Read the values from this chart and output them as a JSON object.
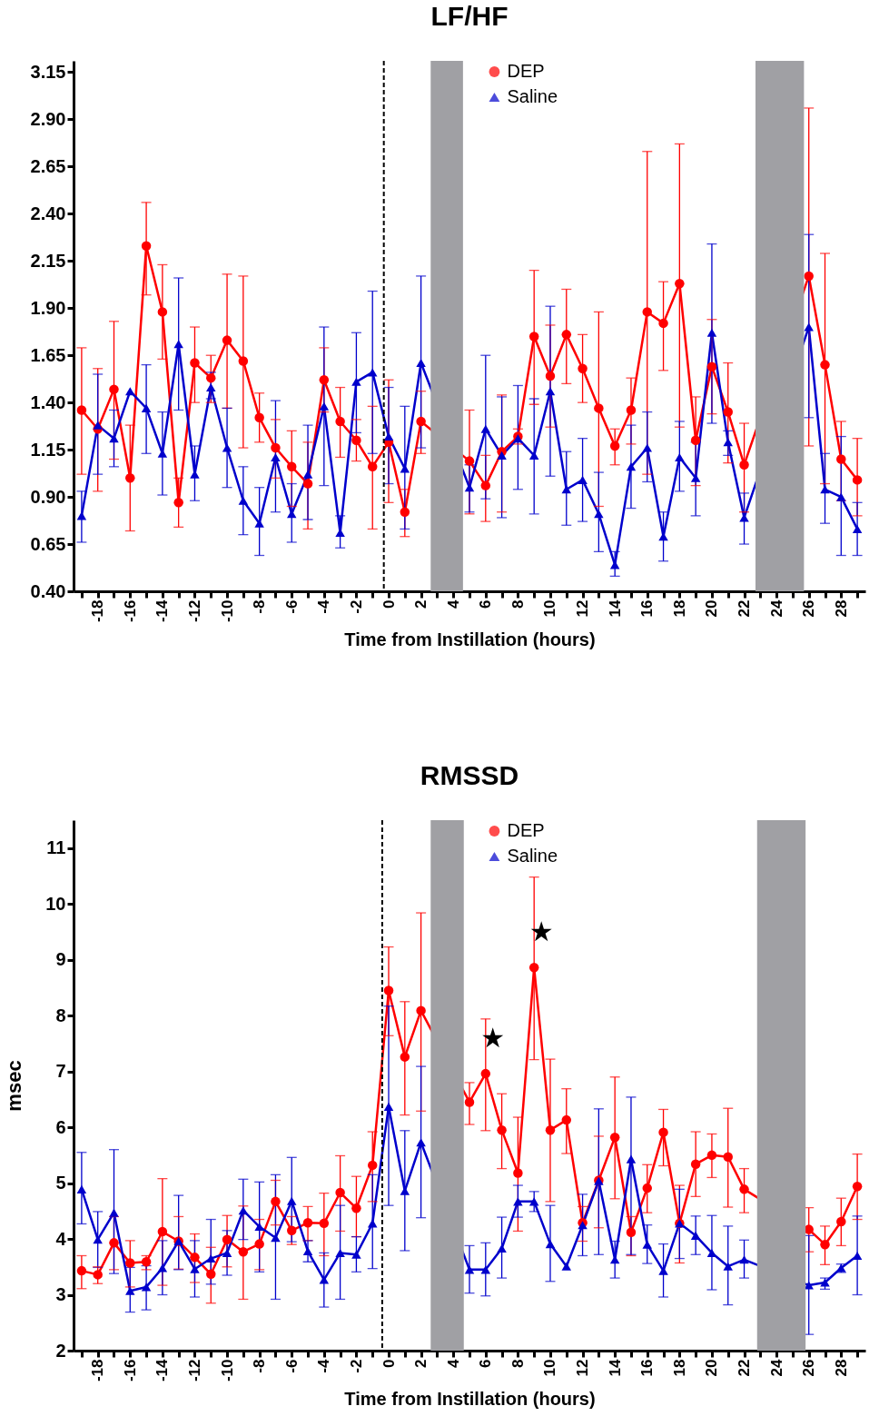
{
  "chart_data": [
    {
      "type": "line",
      "title": "LF/HF",
      "xlabel": "Time from Instillation (hours)",
      "legend": "top",
      "x": [
        -19,
        -18,
        -17,
        -16,
        -15,
        -14,
        -13,
        -12,
        -11,
        -10,
        -9,
        -8,
        -7,
        -6,
        -5,
        -4,
        -3,
        -2,
        -1,
        0,
        1,
        2,
        3,
        4,
        5,
        6,
        7,
        8,
        9,
        10,
        11,
        12,
        13,
        14,
        15,
        16,
        17,
        18,
        19,
        20,
        21,
        22,
        23,
        24,
        25,
        26,
        27,
        28,
        29
      ],
      "xlim": [
        -19.5,
        29.5
      ],
      "xticks": [
        {
          "value": -19,
          "label": null
        },
        -18,
        {
          "value": -17,
          "label": null
        },
        -16,
        {
          "value": -15,
          "label": null
        },
        -14,
        {
          "value": -13,
          "label": null
        },
        -12,
        {
          "value": -11,
          "label": null
        },
        -10,
        {
          "value": -9,
          "label": null
        },
        -8,
        {
          "value": -7,
          "label": null
        },
        -6,
        {
          "value": -5,
          "label": null
        },
        -4,
        {
          "value": -3,
          "label": null
        },
        -2,
        {
          "value": -1,
          "label": null
        },
        0,
        {
          "value": 1,
          "label": null
        },
        2,
        {
          "value": 3,
          "label": null
        },
        4,
        {
          "value": 5,
          "label": null
        },
        6,
        {
          "value": 7,
          "label": null
        },
        8,
        {
          "value": 9,
          "label": null
        },
        10,
        {
          "value": 11,
          "label": null
        },
        12,
        {
          "value": 13,
          "label": null
        },
        14,
        {
          "value": 15,
          "label": null
        },
        16,
        {
          "value": 17,
          "label": null
        },
        18,
        {
          "value": 19,
          "label": null
        },
        20,
        {
          "value": 21,
          "label": null
        },
        22,
        {
          "value": 23,
          "label": null
        },
        24,
        {
          "value": 25,
          "label": null
        },
        26,
        {
          "value": 27,
          "label": null
        },
        28,
        {
          "value": 29,
          "label": null
        }
      ],
      "ylim": [
        0.4,
        3.21
      ],
      "yticks": [
        {
          "value": 0.4,
          "label": "0.40"
        },
        0.65,
        {
          "value": 0.9,
          "label": "0.90"
        },
        1.15,
        {
          "value": 1.4,
          "label": "1.40"
        },
        1.65,
        {
          "value": 1.9,
          "label": "1.90"
        },
        2.15,
        {
          "value": 2.4,
          "label": "2.40"
        },
        2.65,
        {
          "value": 2.9,
          "label": "2.90"
        },
        3.15
      ],
      "ref_lines": [
        {
          "axis": "x",
          "value": -0.3,
          "color": "#000000",
          "line_style": "dashed"
        }
      ],
      "bands": [
        {
          "axis": "x",
          "from": 2.6,
          "to": 4.6,
          "color": "#a0a0a4"
        },
        {
          "axis": "x",
          "from": 22.7,
          "to": 25.7,
          "color": "#a0a0a4"
        }
      ],
      "series": [
        {
          "name": "DEP",
          "color": "#ff0000",
          "marker": "circle",
          "values": [
            1.36,
            1.26,
            1.47,
            1.0,
            2.23,
            1.88,
            0.87,
            1.61,
            1.53,
            1.73,
            1.62,
            1.32,
            1.16,
            1.06,
            0.97,
            1.52,
            1.3,
            1.2,
            1.06,
            1.19,
            0.82,
            1.3,
            null,
            null,
            1.09,
            0.96,
            1.14,
            1.22,
            1.75,
            1.54,
            1.76,
            1.58,
            1.37,
            1.17,
            1.36,
            1.88,
            1.82,
            2.03,
            1.2,
            1.59,
            1.35,
            1.07,
            null,
            null,
            null,
            2.07,
            1.6,
            1.1,
            0.99
          ],
          "errors": [
            [
              1.02,
              1.69
            ],
            [
              0.93,
              1.58
            ],
            [
              1.1,
              1.83
            ],
            [
              0.72,
              1.28
            ],
            [
              1.97,
              2.46
            ],
            [
              1.63,
              2.13
            ],
            [
              0.74,
              1.0
            ],
            [
              1.4,
              1.8
            ],
            [
              1.4,
              1.65
            ],
            [
              1.37,
              2.08
            ],
            [
              1.16,
              2.07
            ],
            [
              1.19,
              1.45
            ],
            [
              1.0,
              1.31
            ],
            [
              0.85,
              1.25
            ],
            [
              0.73,
              1.19
            ],
            [
              1.35,
              1.69
            ],
            [
              1.11,
              1.48
            ],
            [
              1.09,
              1.31
            ],
            [
              0.73,
              1.38
            ],
            [
              0.87,
              1.52
            ],
            [
              0.69,
              0.94
            ],
            [
              1.13,
              1.46
            ],
            null,
            null,
            [
              0.81,
              1.36
            ],
            [
              0.77,
              1.12
            ],
            [
              0.82,
              1.44
            ],
            [
              1.18,
              1.26
            ],
            [
              1.39,
              2.1
            ],
            [
              1.27,
              1.81
            ],
            [
              1.5,
              2.0
            ],
            [
              1.4,
              1.76
            ],
            [
              0.85,
              1.88
            ],
            [
              1.07,
              1.26
            ],
            [
              1.18,
              1.53
            ],
            [
              1.02,
              2.73
            ],
            [
              1.57,
              2.04
            ],
            [
              1.27,
              2.77
            ],
            [
              0.96,
              1.43
            ],
            [
              1.34,
              1.84
            ],
            [
              1.08,
              1.61
            ],
            [
              0.82,
              1.29
            ],
            null,
            null,
            null,
            [
              1.17,
              2.96
            ],
            [
              0.97,
              2.19
            ],
            [
              0.88,
              1.3
            ],
            [
              0.8,
              1.21
            ]
          ]
        },
        {
          "name": "Saline",
          "color": "#0000cc",
          "marker": "triangle",
          "values": [
            0.8,
            1.28,
            1.21,
            1.46,
            1.37,
            1.13,
            1.71,
            1.02,
            1.48,
            1.16,
            0.88,
            0.76,
            1.11,
            0.81,
            1.02,
            1.38,
            0.71,
            1.51,
            1.56,
            1.22,
            1.05,
            1.61,
            null,
            null,
            0.95,
            1.26,
            1.12,
            1.21,
            1.12,
            1.46,
            0.94,
            0.99,
            0.81,
            0.54,
            1.06,
            1.16,
            0.69,
            1.11,
            1.0,
            1.77,
            1.19,
            0.79,
            null,
            null,
            null,
            1.8,
            0.94,
            0.9,
            0.73
          ],
          "errors": [
            [
              0.66,
              0.93
            ],
            [
              1.02,
              1.55
            ],
            [
              1.06,
              1.36
            ],
            null,
            [
              1.13,
              1.6
            ],
            [
              0.91,
              1.35
            ],
            [
              1.36,
              2.06
            ],
            [
              0.88,
              1.17
            ],
            [
              1.42,
              1.56
            ],
            [
              0.95,
              1.37
            ],
            [
              0.7,
              1.06
            ],
            [
              0.59,
              0.95
            ],
            [
              0.82,
              1.41
            ],
            [
              0.66,
              0.97
            ],
            [
              0.78,
              1.28
            ],
            [
              0.96,
              1.8
            ],
            [
              0.63,
              0.8
            ],
            [
              1.24,
              1.77
            ],
            [
              1.13,
              1.99
            ],
            [
              0.97,
              1.48
            ],
            [
              0.73,
              1.38
            ],
            [
              1.16,
              2.07
            ],
            null,
            null,
            [
              0.82,
              1.07
            ],
            [
              0.89,
              1.65
            ],
            [
              0.79,
              1.43
            ],
            [
              0.94,
              1.49
            ],
            [
              0.81,
              1.42
            ],
            [
              1.01,
              1.91
            ],
            [
              0.75,
              1.14
            ],
            [
              0.77,
              1.21
            ],
            [
              0.61,
              1.03
            ],
            [
              0.48,
              0.61
            ],
            [
              0.84,
              1.28
            ],
            [
              0.98,
              1.35
            ],
            [
              0.56,
              0.82
            ],
            [
              0.93,
              1.3
            ],
            [
              0.8,
              1.19
            ],
            [
              1.29,
              2.24
            ],
            [
              1.12,
              1.25
            ],
            [
              0.65,
              0.92
            ],
            null,
            null,
            null,
            [
              1.32,
              2.29
            ],
            [
              0.76,
              1.13
            ],
            [
              0.59,
              1.22
            ],
            [
              0.59,
              0.87
            ]
          ]
        }
      ]
    },
    {
      "type": "line",
      "title": "RMSSD",
      "xlabel": "Time from Instillation (hours)",
      "ylabel": "msec",
      "legend": "top",
      "x": [
        -19,
        -18,
        -17,
        -16,
        -15,
        -14,
        -13,
        -12,
        -11,
        -10,
        -9,
        -8,
        -7,
        -6,
        -5,
        -4,
        -3,
        -2,
        -1,
        0,
        1,
        2,
        3,
        4,
        5,
        6,
        7,
        8,
        9,
        10,
        11,
        12,
        13,
        14,
        15,
        16,
        17,
        18,
        19,
        20,
        21,
        22,
        23,
        24,
        25,
        26,
        27,
        28,
        29
      ],
      "xlim": [
        -19.5,
        29.5
      ],
      "xticks": [
        {
          "value": -19,
          "label": null
        },
        -18,
        {
          "value": -17,
          "label": null
        },
        -16,
        {
          "value": -15,
          "label": null
        },
        -14,
        {
          "value": -13,
          "label": null
        },
        -12,
        {
          "value": -11,
          "label": null
        },
        -10,
        {
          "value": -9,
          "label": null
        },
        -8,
        {
          "value": -7,
          "label": null
        },
        -6,
        {
          "value": -5,
          "label": null
        },
        -4,
        {
          "value": -3,
          "label": null
        },
        -2,
        {
          "value": -1,
          "label": null
        },
        0,
        {
          "value": 1,
          "label": null
        },
        2,
        {
          "value": 3,
          "label": null
        },
        4,
        {
          "value": 5,
          "label": null
        },
        6,
        {
          "value": 7,
          "label": null
        },
        8,
        {
          "value": 9,
          "label": null
        },
        10,
        {
          "value": 11,
          "label": null
        },
        12,
        {
          "value": 13,
          "label": null
        },
        14,
        {
          "value": 15,
          "label": null
        },
        16,
        {
          "value": 17,
          "label": null
        },
        18,
        {
          "value": 19,
          "label": null
        },
        20,
        {
          "value": 21,
          "label": null
        },
        22,
        {
          "value": 23,
          "label": null
        },
        24,
        {
          "value": 25,
          "label": null
        },
        26,
        {
          "value": 27,
          "label": null
        },
        28,
        {
          "value": 29,
          "label": null
        }
      ],
      "ylim": [
        2,
        11.5
      ],
      "yticks": [
        2,
        3,
        4,
        5,
        6,
        7,
        8,
        9,
        10,
        11
      ],
      "ref_lines": [
        {
          "axis": "x",
          "value": -0.4,
          "color": "#000000",
          "line_style": "dashed"
        }
      ],
      "bands": [
        {
          "axis": "x",
          "from": 2.6,
          "to": 4.65,
          "color": "#a0a0a4"
        },
        {
          "axis": "x",
          "from": 22.8,
          "to": 25.8,
          "color": "#a0a0a4"
        }
      ],
      "annotations": [
        {
          "text": "★",
          "x": 6,
          "y": 6.96
        },
        {
          "text": "★",
          "x": 9,
          "y": 8.86
        }
      ],
      "series": [
        {
          "name": "DEP",
          "color": "#ff0000",
          "marker": "circle",
          "values": [
            3.43,
            3.36,
            3.93,
            3.57,
            3.59,
            4.13,
            3.96,
            3.67,
            3.37,
            3.99,
            3.77,
            3.91,
            4.67,
            4.15,
            4.29,
            4.28,
            4.83,
            4.55,
            5.32,
            8.45,
            7.26,
            8.09,
            null,
            null,
            6.45,
            6.96,
            5.95,
            5.18,
            8.86,
            5.95,
            6.13,
            4.29,
            5.05,
            5.82,
            4.12,
            4.91,
            5.91,
            4.28,
            5.34,
            5.5,
            5.47,
            4.89,
            null,
            null,
            null,
            4.17,
            3.9,
            4.31,
            4.94
          ],
          "errors": [
            [
              3.11,
              3.7
            ],
            [
              3.2,
              3.5
            ],
            [
              3.45,
              4.4
            ],
            [
              3.14,
              3.97
            ],
            [
              3.45,
              3.7
            ],
            [
              3.17,
              5.08
            ],
            [
              3.46,
              4.4
            ],
            [
              3.22,
              4.09
            ],
            [
              2.85,
              3.85
            ],
            [
              3.5,
              4.42
            ],
            [
              2.92,
              4.59
            ],
            [
              3.45,
              4.35
            ],
            [
              4.25,
              5.05
            ],
            [
              3.9,
              4.4
            ],
            [
              3.97,
              4.58
            ],
            [
              3.7,
              4.82
            ],
            [
              4.14,
              5.49
            ],
            [
              4.04,
              5.12
            ],
            [
              4.67,
              5.92
            ],
            [
              7.64,
              9.23
            ],
            [
              6.22,
              8.25
            ],
            [
              6.29,
              9.84
            ],
            null,
            null,
            [
              6.05,
              6.8
            ],
            [
              5.94,
              7.94
            ],
            [
              5.26,
              6.6
            ],
            [
              4.14,
              6.18
            ],
            [
              7.21,
              10.48
            ],
            [
              4.67,
              7.22
            ],
            [
              5.53,
              6.69
            ],
            [
              3.96,
              4.58
            ],
            [
              4.2,
              5.84
            ],
            [
              4.72,
              6.9
            ],
            [
              3.7,
              4.4
            ],
            [
              4.47,
              5.33
            ],
            [
              5.31,
              6.32
            ],
            [
              3.57,
              4.96
            ],
            [
              4.76,
              5.92
            ],
            [
              5.1,
              5.88
            ],
            [
              4.57,
              6.34
            ],
            [
              4.47,
              5.26
            ],
            null,
            null,
            null,
            [
              3.77,
              4.56
            ],
            [
              3.54,
              4.23
            ],
            [
              3.88,
              4.73
            ],
            [
              4.35,
              5.52
            ]
          ]
        },
        {
          "name": "Saline",
          "color": "#0000cc",
          "marker": "triangle",
          "values": [
            4.89,
            3.99,
            4.47,
            3.07,
            3.14,
            3.48,
            3.96,
            3.46,
            3.65,
            3.75,
            4.51,
            4.22,
            4.02,
            4.68,
            3.78,
            3.27,
            3.75,
            3.72,
            4.28,
            6.37,
            4.86,
            5.73,
            null,
            null,
            3.45,
            3.45,
            3.83,
            4.67,
            4.67,
            3.91,
            3.51,
            4.25,
            5.04,
            3.63,
            5.43,
            3.9,
            3.43,
            4.28,
            4.06,
            3.75,
            3.51,
            3.63,
            null,
            null,
            null,
            3.17,
            3.22,
            3.48,
            3.7
          ],
          "errors": [
            [
              4.27,
              5.55
            ],
            [
              3.49,
              4.49
            ],
            [
              3.38,
              5.6
            ],
            [
              2.69,
              3.49
            ],
            [
              2.73,
              3.52
            ],
            [
              3.0,
              3.97
            ],
            [
              3.45,
              4.78
            ],
            [
              2.96,
              3.97
            ],
            [
              3.19,
              4.35
            ],
            [
              3.35,
              4.15
            ],
            [
              3.99,
              5.07
            ],
            [
              3.41,
              5.02
            ],
            [
              2.92,
              5.15
            ],
            [
              3.95,
              5.46
            ],
            [
              3.59,
              3.97
            ],
            [
              2.78,
              3.75
            ],
            [
              2.92,
              4.6
            ],
            [
              3.41,
              4.04
            ],
            [
              3.47,
              5.15
            ],
            [
              4.6,
              8.17
            ],
            [
              3.79,
              5.94
            ],
            [
              4.38,
              7.09
            ],
            null,
            null,
            [
              3.03,
              3.88
            ],
            [
              2.98,
              3.93
            ],
            [
              3.3,
              4.39
            ],
            [
              4.39,
              4.96
            ],
            [
              4.49,
              4.85
            ],
            [
              3.24,
              4.6
            ],
            null,
            [
              3.7,
              4.8
            ],
            [
              3.72,
              6.33
            ],
            [
              3.3,
              3.96
            ],
            [
              3.72,
              6.54
            ],
            [
              3.56,
              4.25
            ],
            [
              2.96,
              3.91
            ],
            [
              3.65,
              4.89
            ],
            [
              3.72,
              4.41
            ],
            [
              3.09,
              4.42
            ],
            [
              2.82,
              4.23
            ],
            [
              3.3,
              3.98
            ],
            null,
            null,
            null,
            [
              2.29,
              4.06
            ],
            [
              3.1,
              3.3
            ],
            [
              3.4,
              3.55
            ],
            [
              3.0,
              4.41
            ]
          ]
        }
      ]
    }
  ]
}
